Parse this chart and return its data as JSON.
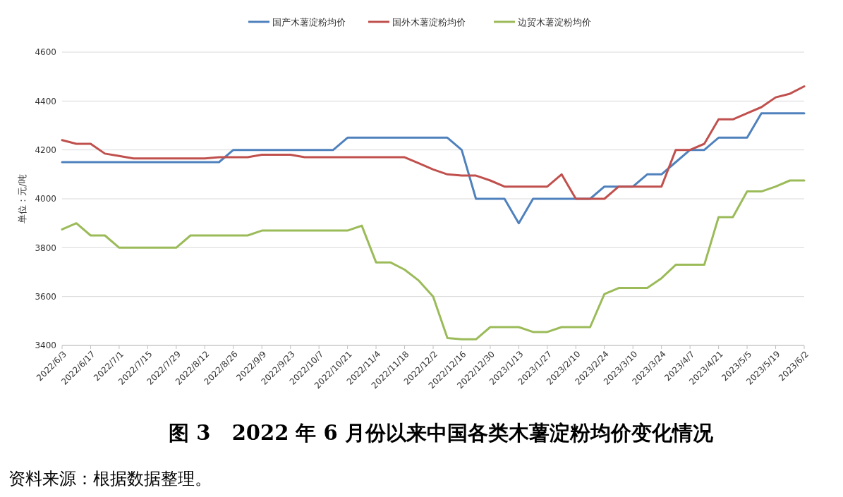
{
  "chart_data": {
    "type": "line",
    "title": "图 3   2022 年 6 月份以来中国各类木薯淀粉均价变化情况",
    "ylabel": "单位：元/吨",
    "categories": [
      "2022/6/3",
      null,
      "2022/6/17",
      null,
      "2022/7/1",
      null,
      "2022/7/15",
      null,
      "2022/7/29",
      null,
      "2022/8/12",
      null,
      "2022/8/26",
      null,
      "2022/9/9",
      null,
      "2022/9/23",
      null,
      "2022/10/7",
      null,
      "2022/10/21",
      null,
      "2022/11/4",
      null,
      "2022/11/18",
      null,
      "2022/12/2",
      null,
      "2022/12/16",
      null,
      "2022/12/30",
      null,
      "2023/1/13",
      null,
      "2023/1/27",
      null,
      "2023/2/10",
      null,
      "2023/2/24",
      null,
      "2023/3/10",
      null,
      "2023/3/24",
      null,
      "2023/4/7",
      null,
      "2023/4/21",
      null,
      "2023/5/5",
      null,
      "2023/5/19",
      null,
      "2023/6/2"
    ],
    "series": [
      {
        "name": "国产木薯淀粉均价",
        "color": "#4f81bd",
        "values": [
          4150,
          4150,
          4150,
          4150,
          4150,
          4150,
          4150,
          4150,
          4150,
          4150,
          4150,
          4150,
          4200,
          4200,
          4200,
          4200,
          4200,
          4200,
          4200,
          4200,
          4250,
          4250,
          4250,
          4250,
          4250,
          4250,
          4250,
          4250,
          4200,
          4000,
          4000,
          4000,
          3900,
          4000,
          4000,
          4000,
          4000,
          4000,
          4050,
          4050,
          4050,
          4100,
          4100,
          4150,
          4200,
          4200,
          4250,
          4250,
          4250,
          4350,
          4350,
          4350,
          4350
        ]
      },
      {
        "name": "国外木薯淀粉均价",
        "color": "#c0504d",
        "values": [
          4240,
          4225,
          4225,
          4185,
          4175,
          4165,
          4165,
          4165,
          4165,
          4165,
          4165,
          4170,
          4170,
          4170,
          4180,
          4180,
          4180,
          4170,
          4170,
          4170,
          4170,
          4170,
          4170,
          4170,
          4170,
          4145,
          4120,
          4100,
          4095,
          4095,
          4075,
          4050,
          4050,
          4050,
          4050,
          4100,
          4000,
          4000,
          4000,
          4050,
          4050,
          4050,
          4050,
          4200,
          4200,
          4225,
          4325,
          4325,
          4350,
          4375,
          4415,
          4430,
          4460
        ]
      },
      {
        "name": "边贸木薯淀粉均价",
        "color": "#9bbb59",
        "values": [
          3875,
          3900,
          3850,
          3850,
          3800,
          3800,
          3800,
          3800,
          3800,
          3850,
          3850,
          3850,
          3850,
          3850,
          3870,
          3870,
          3870,
          3870,
          3870,
          3870,
          3870,
          3890,
          3740,
          3740,
          3710,
          3665,
          3600,
          3430,
          3425,
          3425,
          3475,
          3475,
          3475,
          3455,
          3455,
          3475,
          3475,
          3475,
          3610,
          3635,
          3635,
          3635,
          3675,
          3730,
          3730,
          3730,
          3925,
          3925,
          4030,
          4030,
          4050,
          4075,
          4075
        ]
      }
    ],
    "ylim": [
      3400,
      4600
    ],
    "yticks": [
      3400,
      3600,
      3800,
      4000,
      4200,
      4400,
      4600
    ],
    "grid": "y",
    "legend": "top",
    "annotations": [
      "资料来源：根据数据整理。"
    ]
  }
}
